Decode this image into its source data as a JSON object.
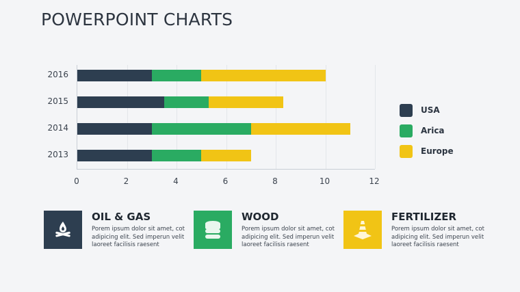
{
  "title": "POWERPOINT CHARTS",
  "colors": {
    "usa": "#2d3e50",
    "africa": "#2aab62",
    "europe": "#f1c415",
    "background": "#f4f5f7"
  },
  "chart_data": {
    "type": "bar",
    "orientation": "horizontal",
    "stacked": true,
    "title": "",
    "categories": [
      "2016",
      "2015",
      "2014",
      "2013"
    ],
    "series": [
      {
        "name": "USA",
        "color": "#2d3e50",
        "values": [
          3,
          3.5,
          3,
          3
        ]
      },
      {
        "name": "Arica",
        "color": "#2aab62",
        "values": [
          2,
          1.8,
          4,
          2
        ]
      },
      {
        "name": "Europe",
        "color": "#f1c415",
        "values": [
          5,
          3,
          4,
          2
        ]
      }
    ],
    "xlim": [
      0,
      12
    ],
    "xticks": [
      "0",
      "2",
      "4",
      "6",
      "8",
      "10",
      "12"
    ],
    "xlabel": "",
    "ylabel": "",
    "grid": true,
    "legend_position": "right"
  },
  "legend": [
    {
      "label": "USA"
    },
    {
      "label": "Arica"
    },
    {
      "label": "Europe"
    }
  ],
  "cards": [
    {
      "title": "OIL & GAS",
      "desc": "Porem ipsum dolor sit amet, cot adipicing elit. Sed imperun velit laoreet facilisis raesent",
      "icon": "campfire-icon",
      "color": "#2d3e50"
    },
    {
      "title": "WOOD",
      "desc": "Porem ipsum dolor sit amet, cot adipicing elit. Sed imperun velit laoreet facilisis raesent",
      "icon": "database-stack-icon",
      "color": "#2aab62"
    },
    {
      "title": "FERTILIZER",
      "desc": "Porem ipsum dolor sit amet, cot adipicing elit. Sed imperun velit laoreet facilisis raesent",
      "icon": "traffic-cone-icon",
      "color": "#f1c415"
    }
  ]
}
